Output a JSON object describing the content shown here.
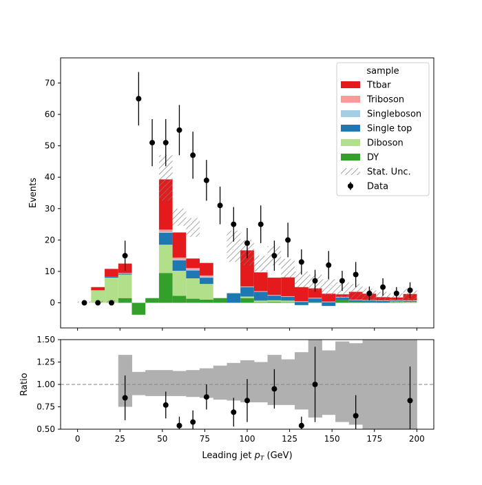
{
  "chart_data": [
    {
      "type": "histogram-stack",
      "title": "",
      "xlabel": "Leading jet  p_T (GeV)",
      "xlabel_main": "Leading jet  ",
      "xlabel_sym": "p",
      "xlabel_sub": "T",
      "xlabel_unit": " (GeV)",
      "ylabel": "Events",
      "xlim": [
        -10,
        210
      ],
      "ylim": [
        -8,
        78
      ],
      "xticks": [
        0,
        25,
        50,
        75,
        100,
        125,
        150,
        175,
        200
      ],
      "yticks": [
        0,
        10,
        20,
        30,
        40,
        50,
        60,
        70
      ],
      "legend": {
        "title": "sample",
        "placement": "top-right",
        "entries": [
          {
            "label": "Ttbar",
            "color": "#e41a1c"
          },
          {
            "label": "Triboson",
            "color": "#fb9a99"
          },
          {
            "label": "Singleboson",
            "color": "#a6cee3"
          },
          {
            "label": "Single top",
            "color": "#1f78b4"
          },
          {
            "label": "Diboson",
            "color": "#b2df8a"
          },
          {
            "label": "DY",
            "color": "#33a02c"
          },
          {
            "label": "Stat. Unc.",
            "color": "#808080"
          },
          {
            "label": "Data",
            "color": "#000000"
          }
        ]
      },
      "bins": [
        0,
        8,
        16,
        24,
        32,
        40,
        48,
        56,
        64,
        72,
        80,
        88,
        96,
        104,
        112,
        120,
        128,
        136,
        144,
        152,
        160,
        168,
        176,
        184,
        192,
        200
      ],
      "series": [
        {
          "name": "DY",
          "color": "#33a02c",
          "values": [
            0,
            0,
            0,
            1.5,
            -3.8,
            1.5,
            9.5,
            2.2,
            1.3,
            1.0,
            1.5,
            0,
            1.5,
            0.2,
            0.3,
            0.2,
            -0.7,
            0.2,
            -1.0,
            1.0,
            0.3,
            0.2,
            0.1,
            0.2,
            0.1
          ]
        },
        {
          "name": "Diboson",
          "color": "#b2df8a",
          "values": [
            0,
            4.0,
            8.0,
            7.5,
            0,
            0,
            9.0,
            8.0,
            6.5,
            5.0,
            0,
            0,
            0.5,
            0.5,
            0.5,
            0.5,
            0,
            0,
            0,
            0,
            0,
            0,
            0,
            0.2,
            0.2
          ]
        },
        {
          "name": "Single top",
          "color": "#1f78b4",
          "values": [
            0,
            0,
            0.3,
            0.3,
            0,
            0,
            3.8,
            3.3,
            2.5,
            2.0,
            0,
            3.0,
            3.0,
            2.8,
            1.5,
            1.2,
            1.0,
            1.2,
            1.2,
            0.7,
            0.5,
            0.5,
            0.5,
            0.3,
            0.3
          ]
        },
        {
          "name": "Singleboson",
          "color": "#a6cee3",
          "values": [
            0,
            0,
            0,
            0.1,
            0,
            0,
            0.3,
            0.3,
            0.3,
            0.3,
            0,
            0.1,
            0.1,
            0.1,
            0.1,
            0.1,
            0.1,
            0.1,
            0.1,
            0.1,
            0.1,
            0.1,
            0.1,
            0.1,
            0.1
          ]
        },
        {
          "name": "Triboson",
          "color": "#fb9a99",
          "values": [
            0,
            0,
            0,
            0.1,
            0,
            0,
            0.7,
            0.6,
            0.5,
            0.4,
            0,
            0.1,
            0.1,
            0.1,
            0.1,
            0.1,
            0.1,
            0.1,
            0.1,
            0.1,
            0.1,
            0.1,
            0.1,
            0.1,
            0.1
          ]
        },
        {
          "name": "Ttbar",
          "color": "#e41a1c",
          "values": [
            0,
            1.0,
            2.5,
            3.0,
            0,
            0,
            16.0,
            8.0,
            3.0,
            4.0,
            0,
            0,
            11.5,
            6.0,
            5.5,
            6.0,
            4.5,
            3.0,
            2.5,
            0.8,
            2.5,
            2.0,
            1.0,
            0.8,
            2.0
          ]
        }
      ],
      "stat_unc": [
        [
          0,
          0.4
        ],
        [
          0,
          0.6
        ],
        [
          0,
          0.8
        ],
        [
          0,
          0.8
        ],
        [
          0,
          0
        ],
        [
          0,
          0
        ],
        [
          32.5,
          47.0
        ],
        [
          24.5,
          30.0
        ],
        [
          21.0,
          27.0
        ],
        [
          0,
          0
        ],
        [
          0,
          0
        ],
        [
          13.0,
          23.0
        ],
        [
          12.0,
          20.0
        ],
        [
          10.0,
          15.0
        ],
        [
          12.0,
          18.0
        ],
        [
          8.0,
          14.0
        ],
        [
          5.0,
          10.0
        ],
        [
          4.0,
          9.0
        ],
        [
          2.5,
          7.5
        ],
        [
          1.5,
          6.5
        ],
        [
          1.0,
          6.0
        ],
        [
          0.5,
          4.5
        ],
        [
          0.2,
          3.5
        ],
        [
          0.0,
          3.0
        ],
        [
          0.0,
          4.5
        ]
      ],
      "data": {
        "name": "Data",
        "x": [
          4,
          12,
          20,
          28,
          36,
          44,
          52,
          60,
          68,
          76,
          84,
          92,
          100,
          108,
          116,
          124,
          132,
          140,
          148,
          156,
          164,
          172,
          180,
          188,
          196
        ],
        "y": [
          0,
          0,
          0,
          15,
          65,
          51,
          51,
          55,
          47,
          39,
          31,
          25,
          19,
          25,
          15,
          20,
          13,
          7,
          12,
          7,
          9,
          3,
          5,
          3,
          4
        ],
        "err": [
          0,
          0,
          0,
          4.8,
          8.5,
          7.5,
          7.5,
          8.0,
          7.5,
          6.5,
          6.0,
          5.5,
          4.8,
          6.0,
          4.8,
          5.5,
          4.0,
          3.5,
          4.5,
          3.2,
          4.0,
          2.2,
          2.8,
          2.0,
          2.5
        ]
      }
    },
    {
      "type": "ratio",
      "ylabel": "Ratio",
      "ylim": [
        0.5,
        1.5
      ],
      "yticks": [
        "0.50",
        "0.75",
        "1.00",
        "1.25",
        "1.50"
      ],
      "reference_line": 1.0,
      "unc_band": [
        [
          0,
          0
        ],
        [
          0,
          0
        ],
        [
          0,
          0
        ],
        [
          0.75,
          1.33
        ],
        [
          0.88,
          1.14
        ],
        [
          0.87,
          1.16
        ],
        [
          0.87,
          1.16
        ],
        [
          0.87,
          1.15
        ],
        [
          0.86,
          1.16
        ],
        [
          0.85,
          1.18
        ],
        [
          0.83,
          1.21
        ],
        [
          0.82,
          1.24
        ],
        [
          0.8,
          1.27
        ],
        [
          0.8,
          1.25
        ],
        [
          0.77,
          1.33
        ],
        [
          0.77,
          1.28
        ],
        [
          0.72,
          1.36
        ],
        [
          0.63,
          1.5
        ],
        [
          0.66,
          1.38
        ],
        [
          0.58,
          1.48
        ],
        [
          0.55,
          1.46
        ],
        [
          0.5,
          1.5
        ],
        [
          0.5,
          1.5
        ],
        [
          0.5,
          1.5
        ],
        [
          0.5,
          1.5
        ]
      ],
      "points": {
        "x": [
          28,
          52,
          60,
          68,
          76,
          92,
          100,
          116,
          132,
          140,
          164,
          196
        ],
        "y": [
          0.85,
          0.77,
          0.54,
          0.58,
          0.86,
          0.69,
          0.82,
          0.95,
          0.54,
          1.0,
          0.65,
          0.82
        ],
        "err": [
          0.25,
          0.15,
          0.1,
          0.13,
          0.14,
          0.16,
          0.24,
          0.22,
          0.1,
          0.42,
          0.23,
          0.38
        ]
      }
    }
  ]
}
